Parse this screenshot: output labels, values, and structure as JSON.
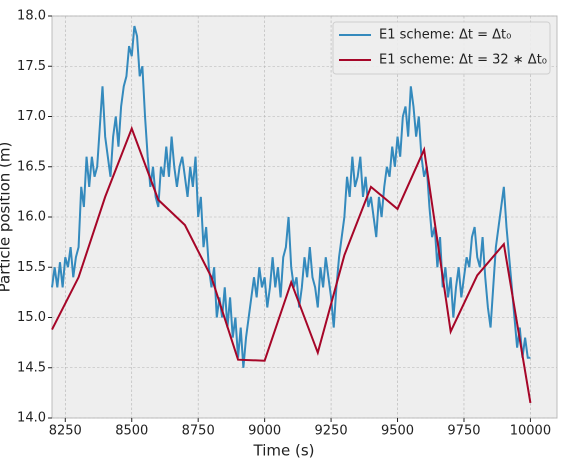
{
  "chart_data": {
    "type": "line",
    "xlabel": "Time (s)",
    "ylabel": "Particle position (m)",
    "xlim": [
      8200,
      10100
    ],
    "ylim": [
      14,
      18
    ],
    "xticks": [
      8250,
      8500,
      8750,
      9000,
      9250,
      9500,
      9750,
      10000
    ],
    "yticks": [
      {
        "value": 14,
        "label": "14.0"
      },
      14.5,
      {
        "value": 15,
        "label": "15.0"
      },
      15.5,
      {
        "value": 16,
        "label": "16.0"
      },
      16.5,
      {
        "value": 17,
        "label": "17.0"
      },
      17.5,
      {
        "value": 18,
        "label": "18.0"
      }
    ],
    "grid": true,
    "legend": "upper right",
    "series": [
      {
        "name": "E1 scheme: Δt = Δt₀",
        "color": "#348abd",
        "x": [
          8200,
          8210,
          8220,
          8230,
          8240,
          8250,
          8260,
          8270,
          8280,
          8290,
          8300,
          8310,
          8320,
          8330,
          8340,
          8350,
          8360,
          8370,
          8380,
          8390,
          8400,
          8410,
          8420,
          8430,
          8440,
          8450,
          8460,
          8470,
          8480,
          8490,
          8500,
          8510,
          8520,
          8530,
          8540,
          8550,
          8560,
          8570,
          8580,
          8590,
          8600,
          8610,
          8620,
          8630,
          8640,
          8650,
          8660,
          8670,
          8680,
          8690,
          8700,
          8710,
          8720,
          8730,
          8740,
          8750,
          8760,
          8770,
          8780,
          8790,
          8800,
          8810,
          8820,
          8830,
          8840,
          8850,
          8860,
          8870,
          8880,
          8890,
          8900,
          8910,
          8920,
          8930,
          8940,
          8950,
          8960,
          8970,
          8980,
          8990,
          9000,
          9010,
          9020,
          9030,
          9040,
          9050,
          9060,
          9070,
          9080,
          9090,
          9100,
          9110,
          9120,
          9130,
          9140,
          9150,
          9160,
          9170,
          9180,
          9190,
          9200,
          9210,
          9220,
          9230,
          9240,
          9250,
          9260,
          9270,
          9280,
          9290,
          9300,
          9310,
          9320,
          9330,
          9340,
          9350,
          9360,
          9370,
          9380,
          9390,
          9400,
          9410,
          9420,
          9430,
          9440,
          9450,
          9460,
          9470,
          9480,
          9490,
          9500,
          9510,
          9520,
          9530,
          9540,
          9550,
          9560,
          9570,
          9580,
          9590,
          9600,
          9610,
          9620,
          9630,
          9640,
          9650,
          9660,
          9670,
          9680,
          9690,
          9700,
          9710,
          9720,
          9730,
          9740,
          9750,
          9760,
          9770,
          9780,
          9790,
          9800,
          9810,
          9820,
          9830,
          9840,
          9850,
          9860,
          9870,
          9880,
          9890,
          9900,
          9910,
          9920,
          9930,
          9940,
          9950,
          9960,
          9970,
          9980,
          9990,
          10000
        ],
        "values": [
          15.3,
          15.5,
          15.3,
          15.55,
          15.3,
          15.6,
          15.5,
          15.7,
          15.4,
          15.6,
          15.7,
          16.3,
          16.1,
          16.6,
          16.3,
          16.6,
          16.4,
          16.5,
          16.9,
          17.3,
          16.8,
          16.6,
          16.4,
          16.8,
          17.0,
          16.7,
          17.1,
          17.3,
          17.4,
          17.7,
          17.6,
          17.9,
          17.8,
          17.4,
          17.5,
          17.0,
          16.6,
          16.3,
          16.5,
          16.2,
          16.1,
          16.5,
          16.4,
          16.7,
          16.4,
          16.8,
          16.5,
          16.3,
          16.5,
          16.6,
          16.4,
          16.2,
          16.5,
          16.3,
          16.6,
          16.0,
          16.2,
          15.7,
          15.9,
          15.5,
          15.3,
          15.5,
          15.0,
          15.2,
          15.0,
          15.3,
          14.9,
          15.2,
          14.8,
          15.0,
          14.6,
          14.9,
          14.5,
          14.8,
          15.0,
          15.2,
          15.4,
          15.2,
          15.5,
          15.3,
          15.4,
          15.1,
          15.3,
          15.6,
          15.3,
          15.5,
          15.2,
          15.6,
          15.7,
          16.0,
          15.5,
          15.3,
          15.4,
          15.1,
          15.3,
          15.6,
          15.4,
          15.7,
          15.4,
          15.3,
          15.1,
          15.5,
          15.3,
          15.6,
          15.4,
          15.2,
          14.9,
          15.3,
          15.6,
          15.8,
          16.0,
          16.4,
          16.2,
          16.6,
          16.3,
          16.4,
          16.6,
          16.2,
          16.4,
          16.1,
          16.2,
          16.0,
          15.8,
          16.2,
          16.0,
          16.3,
          16.5,
          16.4,
          16.7,
          16.5,
          16.8,
          16.6,
          17.0,
          17.1,
          16.8,
          17.3,
          17.1,
          16.8,
          17.0,
          16.6,
          16.4,
          16.5,
          16.1,
          15.8,
          15.9,
          15.5,
          15.8,
          15.3,
          15.5,
          15.2,
          15.4,
          15.0,
          15.3,
          15.5,
          15.2,
          15.4,
          15.6,
          15.5,
          15.8,
          15.9,
          15.6,
          15.5,
          15.8,
          15.4,
          15.1,
          14.9,
          15.3,
          15.7,
          15.9,
          16.1,
          16.3,
          15.9,
          15.6,
          15.3,
          15.0,
          14.7,
          14.9,
          14.6,
          14.8,
          14.6,
          14.6
        ]
      },
      {
        "name": "E1 scheme: Δt = 32 ∗ Δt₀",
        "color": "#a60628",
        "x": [
          8200,
          8300,
          8400,
          8500,
          8600,
          8700,
          8800,
          8900,
          9000,
          9100,
          9200,
          9300,
          9400,
          9500,
          9600,
          9700,
          9800,
          9900,
          10000
        ],
        "values": [
          14.88,
          15.4,
          16.2,
          16.88,
          16.17,
          15.92,
          15.4,
          14.58,
          14.57,
          15.35,
          14.65,
          15.62,
          16.3,
          16.08,
          16.67,
          14.86,
          15.42,
          15.73,
          14.15
        ]
      }
    ]
  }
}
